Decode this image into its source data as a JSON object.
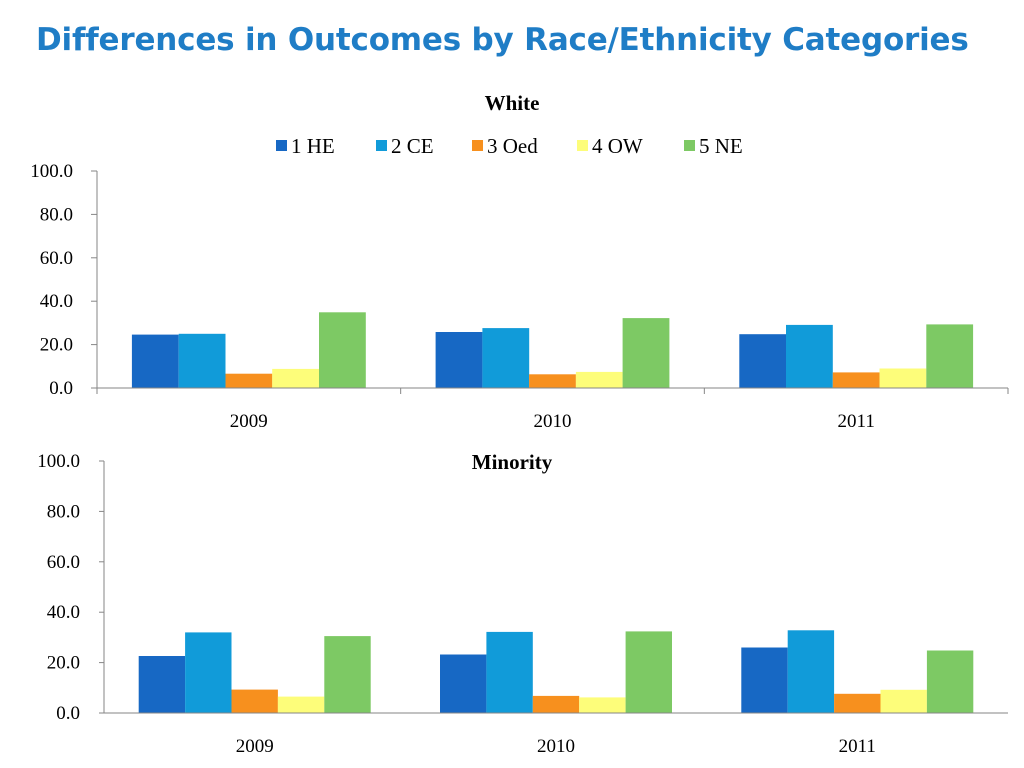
{
  "slide": {
    "title": "Differences in Outcomes by Race/Ethnicity Categories"
  },
  "colors": {
    "1  HE": "#1768c4",
    "2 CE": "#119bd9",
    "3 Oed": "#f7901e",
    "4 OW": "#fdfd7a",
    "5 NE": "#7dc964",
    "axis": "#868686",
    "title": "#1f7dc6"
  },
  "chart_data": [
    {
      "type": "bar",
      "title": "White",
      "legend_position": "top",
      "grid": false,
      "categories": [
        "2009",
        "2010",
        "2011"
      ],
      "y_ticks": [
        "0.0",
        "20.0",
        "40.0",
        "60.0",
        "80.0",
        "100.0"
      ],
      "ylim": [
        0,
        100
      ],
      "series": [
        {
          "name": "1  HE",
          "values": [
            24.6,
            25.8,
            24.8
          ]
        },
        {
          "name": "2 CE",
          "values": [
            25.0,
            27.6,
            29.1
          ]
        },
        {
          "name": "3 Oed",
          "values": [
            6.6,
            6.3,
            7.2
          ]
        },
        {
          "name": "4 OW",
          "values": [
            8.8,
            7.4,
            9.0
          ]
        },
        {
          "name": "5 NE",
          "values": [
            34.9,
            32.2,
            29.3
          ]
        }
      ]
    },
    {
      "type": "bar",
      "title": "Minority",
      "grid": false,
      "categories": [
        "2009",
        "2010",
        "2011"
      ],
      "y_ticks": [
        "0.0",
        "20.0",
        "40.0",
        "60.0",
        "80.0",
        "100.0"
      ],
      "ylim": [
        0,
        100
      ],
      "series": [
        {
          "name": "1  HE",
          "values": [
            22.6,
            23.2,
            26.0
          ]
        },
        {
          "name": "2 CE",
          "values": [
            32.0,
            32.2,
            32.8
          ]
        },
        {
          "name": "3 Oed",
          "values": [
            9.3,
            6.8,
            7.6
          ]
        },
        {
          "name": "4 OW",
          "values": [
            6.5,
            6.2,
            9.2
          ]
        },
        {
          "name": "5 NE",
          "values": [
            30.5,
            32.4,
            24.8
          ]
        }
      ]
    }
  ]
}
